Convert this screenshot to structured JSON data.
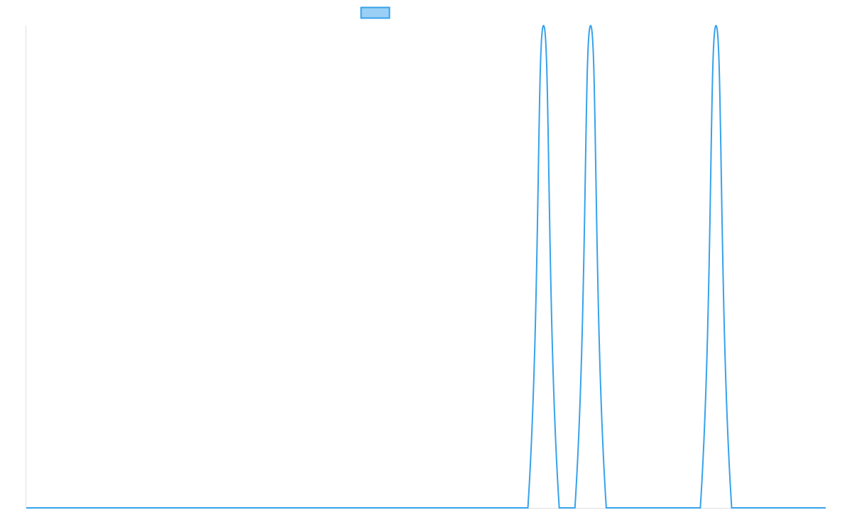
{
  "chart_data": {
    "type": "line",
    "x": [
      0,
      1,
      2,
      3,
      4,
      5,
      6,
      7,
      8,
      9,
      10,
      11,
      12,
      13,
      14,
      15,
      16,
      17,
      18,
      19,
      20,
      21,
      22,
      23,
      24,
      25,
      26,
      27,
      28,
      29,
      30,
      31,
      32,
      33,
      34,
      35,
      36,
      37,
      38,
      39,
      40,
      41,
      42,
      43,
      44,
      45,
      46,
      47,
      48,
      49,
      50,
      51
    ],
    "series": [
      {
        "values": [
          0,
          0,
          0,
          0,
          0,
          0,
          0,
          0,
          0,
          0,
          0,
          0,
          0,
          0,
          0,
          0,
          0,
          0,
          0,
          0,
          0,
          0,
          0,
          0,
          0,
          0,
          0,
          0,
          0,
          0,
          0,
          0,
          0,
          1,
          0,
          0,
          1,
          0,
          0,
          0,
          0,
          0,
          0,
          0,
          1,
          0,
          0,
          0,
          0,
          0,
          0,
          0
        ],
        "color": "#36a2eb",
        "fill": "rgba(54,162,235,0.5)"
      }
    ],
    "ylim": [
      0,
      1
    ],
    "legend": "top",
    "grid": false,
    "tick_labels_shown": false
  }
}
